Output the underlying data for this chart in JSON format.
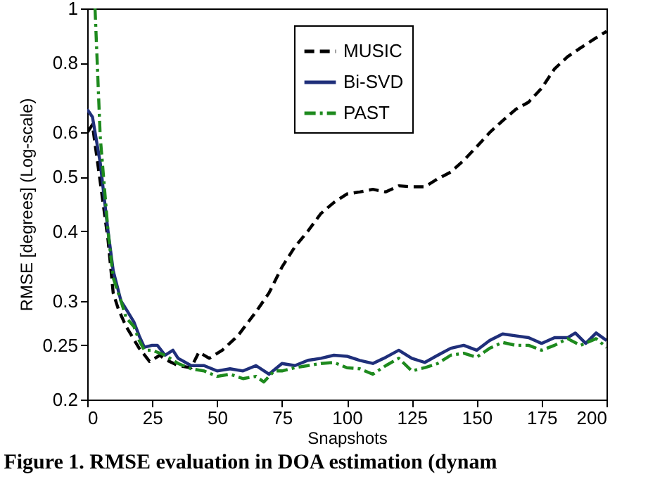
{
  "chart_data": {
    "type": "line",
    "xlabel": "Snapshots",
    "ylabel": "RMSE [degrees] (Log-scale)",
    "log": "y",
    "legend": "top right",
    "annotations": [
      "Figure 1. RMSE evaluation in DOA estimation (dynam"
    ],
    "xlim": [
      0,
      200
    ],
    "xticks": [
      0,
      25,
      50,
      75,
      100,
      125,
      150,
      175,
      200
    ],
    "ylim": [
      0.2,
      1
    ],
    "yticks": [
      0.2,
      0.25,
      0.3,
      0.4,
      0.5,
      0.6,
      0.8,
      1
    ],
    "series": [
      {
        "name": "MUSIC",
        "color": "#000000",
        "line_style": "dashed",
        "x": [
          0,
          2,
          5,
          8,
          10,
          12,
          15,
          20,
          24,
          28,
          30,
          35,
          40,
          43,
          47,
          52,
          58,
          65,
          70,
          75,
          80,
          85,
          90,
          95,
          100,
          105,
          110,
          115,
          120,
          125,
          130,
          135,
          140,
          145,
          150,
          155,
          160,
          165,
          170,
          175,
          180,
          185,
          190,
          195,
          200
        ],
        "values": [
          0.6,
          0.62,
          0.49,
          0.386,
          0.31,
          0.29,
          0.27,
          0.247,
          0.234,
          0.24,
          0.236,
          0.23,
          0.228,
          0.243,
          0.237,
          0.245,
          0.26,
          0.287,
          0.31,
          0.345,
          0.375,
          0.4,
          0.43,
          0.45,
          0.466,
          0.47,
          0.475,
          0.47,
          0.482,
          0.48,
          0.48,
          0.496,
          0.51,
          0.535,
          0.566,
          0.6,
          0.63,
          0.66,
          0.68,
          0.72,
          0.78,
          0.82,
          0.85,
          0.88,
          0.91
        ]
      },
      {
        "name": "Bi-SVD",
        "color": "#1f2f7a",
        "line_style": "solid",
        "x": [
          0,
          2,
          5,
          8,
          10,
          13,
          15,
          18,
          20,
          22,
          25,
          27,
          30,
          33,
          35,
          40,
          45,
          50,
          55,
          60,
          65,
          70,
          75,
          80,
          85,
          90,
          95,
          100,
          105,
          110,
          115,
          120,
          125,
          130,
          135,
          140,
          145,
          150,
          155,
          160,
          165,
          170,
          175,
          180,
          185,
          188,
          192,
          196,
          200
        ],
        "values": [
          0.66,
          0.64,
          0.53,
          0.4,
          0.34,
          0.3,
          0.29,
          0.275,
          0.26,
          0.248,
          0.25,
          0.25,
          0.24,
          0.245,
          0.237,
          0.23,
          0.23,
          0.225,
          0.227,
          0.225,
          0.23,
          0.222,
          0.232,
          0.23,
          0.235,
          0.237,
          0.24,
          0.239,
          0.235,
          0.232,
          0.238,
          0.245,
          0.237,
          0.233,
          0.24,
          0.247,
          0.25,
          0.245,
          0.255,
          0.262,
          0.26,
          0.258,
          0.252,
          0.258,
          0.258,
          0.263,
          0.252,
          0.263,
          0.255
        ]
      },
      {
        "name": "PAST",
        "color": "#1e8a1e",
        "line_style": "dashdot",
        "x": [
          3,
          5,
          8,
          10,
          13,
          15,
          18,
          20,
          22,
          25,
          30,
          35,
          40,
          45,
          50,
          55,
          60,
          65,
          68,
          72,
          75,
          80,
          85,
          90,
          95,
          100,
          105,
          110,
          115,
          120,
          125,
          130,
          135,
          140,
          145,
          150,
          155,
          160,
          165,
          170,
          175,
          180,
          185,
          190,
          196,
          200
        ],
        "values": [
          1,
          0.59,
          0.4,
          0.33,
          0.3,
          0.28,
          0.27,
          0.255,
          0.245,
          0.245,
          0.24,
          0.232,
          0.227,
          0.225,
          0.22,
          0.222,
          0.218,
          0.22,
          0.215,
          0.225,
          0.225,
          0.228,
          0.23,
          0.232,
          0.233,
          0.228,
          0.227,
          0.222,
          0.23,
          0.237,
          0.225,
          0.228,
          0.232,
          0.24,
          0.242,
          0.238,
          0.247,
          0.253,
          0.25,
          0.25,
          0.245,
          0.25,
          0.257,
          0.25,
          0.257,
          0.248
        ]
      }
    ]
  }
}
